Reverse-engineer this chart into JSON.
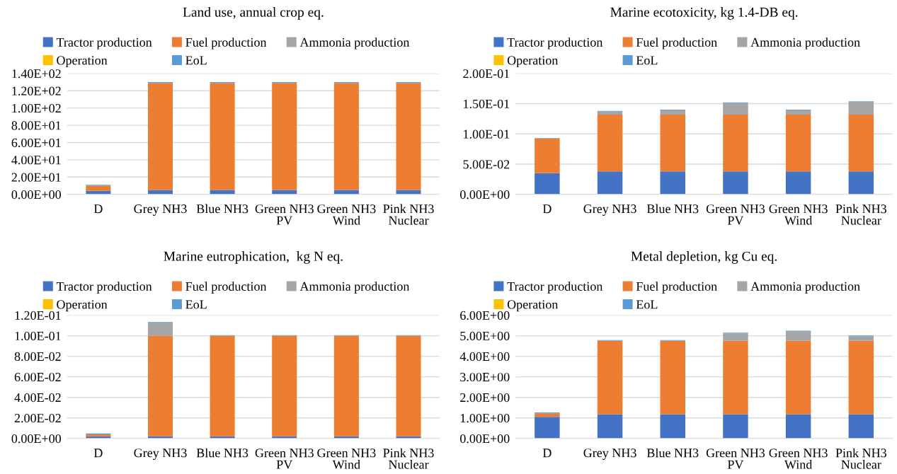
{
  "chart_data": [
    {
      "type": "bar",
      "stacked": true,
      "title": "Land use, annual crop eq.",
      "categories": [
        "D",
        "Grey NH3",
        "Blue NH3",
        "Green NH3\nPV",
        "Green NH3\nWind",
        "Pink NH3\nNuclear"
      ],
      "ylim": [
        0,
        140
      ],
      "yticks": [
        {
          "value": 0,
          "label": "0.00E+00"
        },
        {
          "value": 20,
          "label": "2.00E+01"
        },
        {
          "value": 40,
          "label": "4.00E+01"
        },
        {
          "value": 60,
          "label": "6.00E+01"
        },
        {
          "value": 80,
          "label": "8.00E+01"
        },
        {
          "value": 100,
          "label": "1.00E+02"
        },
        {
          "value": 120,
          "label": "1.20E+02"
        },
        {
          "value": 140,
          "label": "1.40E+02"
        }
      ],
      "grid": "y",
      "legend": "top",
      "series": [
        {
          "name": "Tractor production",
          "color": "#4472c4",
          "values": [
            4,
            5,
            5,
            5,
            5,
            5
          ]
        },
        {
          "name": "Fuel production",
          "color": "#ed7d31",
          "values": [
            6,
            124,
            124,
            124,
            124,
            124
          ]
        },
        {
          "name": "Ammonia production",
          "color": "#a5a5a5",
          "values": [
            0,
            0,
            0,
            0,
            0,
            0
          ]
        },
        {
          "name": "Operation",
          "color": "#ffc000",
          "values": [
            0,
            0,
            0,
            0,
            0,
            0
          ]
        },
        {
          "name": "EoL",
          "color": "#5b9bd5",
          "values": [
            1,
            1,
            1,
            1,
            1,
            1
          ]
        }
      ]
    },
    {
      "type": "bar",
      "stacked": true,
      "title": "Marine ecotoxicity, kg 1.4-DB eq.",
      "categories": [
        "D",
        "Grey NH3",
        "Blue NH3",
        "Green NH3\nPV",
        "Green NH3\nWind",
        "Pink NH3\nNuclear"
      ],
      "ylim": [
        0,
        0.2
      ],
      "yticks": [
        {
          "value": 0,
          "label": "0.00E+00"
        },
        {
          "value": 0.05,
          "label": "5.00E-02"
        },
        {
          "value": 0.1,
          "label": "1.00E-01"
        },
        {
          "value": 0.15,
          "label": "1.50E-01"
        },
        {
          "value": 0.2,
          "label": "2.00E-01"
        }
      ],
      "grid": "y",
      "legend": "top",
      "series": [
        {
          "name": "Tractor production",
          "color": "#4472c4",
          "values": [
            0.035,
            0.038,
            0.038,
            0.038,
            0.038,
            0.038
          ]
        },
        {
          "name": "Fuel production",
          "color": "#ed7d31",
          "values": [
            0.057,
            0.094,
            0.094,
            0.094,
            0.094,
            0.094
          ]
        },
        {
          "name": "Ammonia production",
          "color": "#a5a5a5",
          "values": [
            0,
            0.005,
            0.007,
            0.019,
            0.007,
            0.021
          ]
        },
        {
          "name": "Operation",
          "color": "#ffc000",
          "values": [
            0,
            0,
            0,
            0,
            0,
            0
          ]
        },
        {
          "name": "EoL",
          "color": "#5b9bd5",
          "values": [
            0.001,
            0.001,
            0.001,
            0.001,
            0.001,
            0.001
          ]
        }
      ]
    },
    {
      "type": "bar",
      "stacked": true,
      "title": "Marine eutrophication,  kg N eq.",
      "categories": [
        "D",
        "Grey NH3",
        "Blue NH3",
        "Green NH3\nPV",
        "Green NH3\nWind",
        "Pink NH3\nNuclear"
      ],
      "ylim": [
        0,
        0.12
      ],
      "yticks": [
        {
          "value": 0,
          "label": "0.00E+00"
        },
        {
          "value": 0.02,
          "label": "2.00E-02"
        },
        {
          "value": 0.04,
          "label": "4.00E-02"
        },
        {
          "value": 0.06,
          "label": "6.00E-02"
        },
        {
          "value": 0.08,
          "label": "8.00E-02"
        },
        {
          "value": 0.1,
          "label": "1.00E-01"
        },
        {
          "value": 0.12,
          "label": "1.20E-01"
        }
      ],
      "grid": "y",
      "legend": "top",
      "series": [
        {
          "name": "Tractor production",
          "color": "#4472c4",
          "values": [
            0.002,
            0.002,
            0.002,
            0.002,
            0.002,
            0.002
          ]
        },
        {
          "name": "Fuel production",
          "color": "#ed7d31",
          "values": [
            0.002,
            0.098,
            0.098,
            0.098,
            0.098,
            0.098
          ]
        },
        {
          "name": "Ammonia production",
          "color": "#a5a5a5",
          "values": [
            0,
            0.013,
            0,
            0,
            0,
            0
          ]
        },
        {
          "name": "Operation",
          "color": "#ffc000",
          "values": [
            0,
            0,
            0,
            0,
            0,
            0
          ]
        },
        {
          "name": "EoL",
          "color": "#5b9bd5",
          "values": [
            0.0008,
            0.0005,
            0.0005,
            0.0005,
            0.0005,
            0.0005
          ]
        }
      ]
    },
    {
      "type": "bar",
      "stacked": true,
      "title": "Metal depletion, kg Cu eq.",
      "categories": [
        "D",
        "Grey NH3",
        "Blue NH3",
        "Green NH3\nPV",
        "Green NH3\nWind",
        "Pink NH3\nNuclear"
      ],
      "ylim": [
        0,
        6
      ],
      "yticks": [
        {
          "value": 0,
          "label": "0.00E+00"
        },
        {
          "value": 1,
          "label": "1.00E+00"
        },
        {
          "value": 2,
          "label": "2.00E+00"
        },
        {
          "value": 3,
          "label": "3.00E+00"
        },
        {
          "value": 4,
          "label": "4.00E+00"
        },
        {
          "value": 5,
          "label": "5.00E+00"
        },
        {
          "value": 6,
          "label": "6.00E+00"
        }
      ],
      "grid": "y",
      "legend": "top",
      "series": [
        {
          "name": "Tractor production",
          "color": "#4472c4",
          "values": [
            1.05,
            1.18,
            1.18,
            1.18,
            1.18,
            1.18
          ]
        },
        {
          "name": "Fuel production",
          "color": "#ed7d31",
          "values": [
            0.17,
            3.57,
            3.57,
            3.57,
            3.57,
            3.57
          ]
        },
        {
          "name": "Ammonia production",
          "color": "#a5a5a5",
          "values": [
            0,
            0,
            0,
            0.36,
            0.45,
            0.22
          ]
        },
        {
          "name": "Operation",
          "color": "#ffc000",
          "values": [
            0,
            0,
            0,
            0,
            0,
            0
          ]
        },
        {
          "name": "EoL",
          "color": "#5b9bd5",
          "values": [
            0.05,
            0.04,
            0.04,
            0.04,
            0.04,
            0.04
          ]
        }
      ]
    }
  ]
}
